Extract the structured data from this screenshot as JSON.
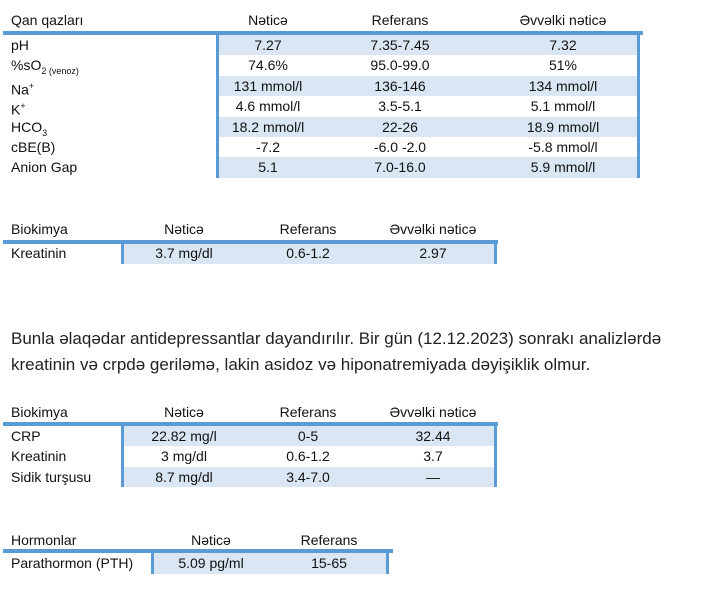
{
  "colors": {
    "accent": "#5b9bd5",
    "row_shade": "#dae6f4"
  },
  "tables": [
    {
      "headers": [
        "Qan qazları",
        "Nəticə",
        "Referans",
        "Əvvəlki nəticə"
      ],
      "rows": [
        {
          "label": "pH",
          "sub": "",
          "sup": "",
          "values": [
            "7.27",
            "7.35-7.45",
            "7.32"
          ]
        },
        {
          "label": "%sO",
          "sub": "2 (venoz)",
          "sup": "",
          "values": [
            "74.6%",
            "95.0-99.0",
            "51%"
          ]
        },
        {
          "label": "Na",
          "sub": "",
          "sup": "+",
          "values": [
            "131 mmol/l",
            "136-146",
            "134 mmol/l"
          ]
        },
        {
          "label": "K",
          "sub": "",
          "sup": "+",
          "values": [
            "4.6 mmol/l",
            "3.5-5.1",
            "5.1 mmol/l"
          ]
        },
        {
          "label": "HCO",
          "sub": "3",
          "sup": "",
          "values": [
            "18.2 mmol/l",
            "22-26",
            "18.9 mmol/l"
          ]
        },
        {
          "label": "cBE(B)",
          "sub": "",
          "sup": "",
          "values": [
            "-7.2",
            "-6.0 -2.0",
            "-5.8 mmol/l"
          ]
        },
        {
          "label": "Anion Gap",
          "sub": "",
          "sup": "",
          "values": [
            "5.1",
            "7.0-16.0",
            "5.9 mmol/l"
          ]
        }
      ]
    },
    {
      "headers": [
        "Biokimya",
        "Nəticə",
        "Referans",
        "Əvvəlki nəticə"
      ],
      "rows": [
        {
          "label": "Kreatinin",
          "sub": "",
          "sup": "",
          "values": [
            "3.7 mg/dl",
            "0.6-1.2",
            "2.97"
          ]
        }
      ]
    },
    {
      "headers": [
        "Biokimya",
        "Nəticə",
        "Referans",
        "Əvvəlki nəticə"
      ],
      "rows": [
        {
          "label": "CRP",
          "sub": "",
          "sup": "",
          "values": [
            "22.82 mg/l",
            "0-5",
            "32.44"
          ]
        },
        {
          "label": "Kreatinin",
          "sub": "",
          "sup": "",
          "values": [
            "3 mg/dl",
            "0.6-1.2",
            "3.7"
          ]
        },
        {
          "label": "Sidik turşusu",
          "sub": "",
          "sup": "",
          "values": [
            "8.7 mg/dl",
            "3.4-7.0",
            "—"
          ]
        }
      ]
    },
    {
      "headers": [
        "Hormonlar",
        "Nəticə",
        "Referans"
      ],
      "rows": [
        {
          "label": "Parathormon (PTH)",
          "sub": "",
          "sup": "",
          "values": [
            "5.09 pg/ml",
            "15-65"
          ]
        }
      ]
    }
  ],
  "paragraph": "Bunla əlaqədar antidepressantlar dayandırılır. Bir gün (12.12.2023) sonrakı analizlərdə kreatinin və crpdə geriləmə, lakin asidoz və hiponatremiyada dəyişiklik olmur."
}
